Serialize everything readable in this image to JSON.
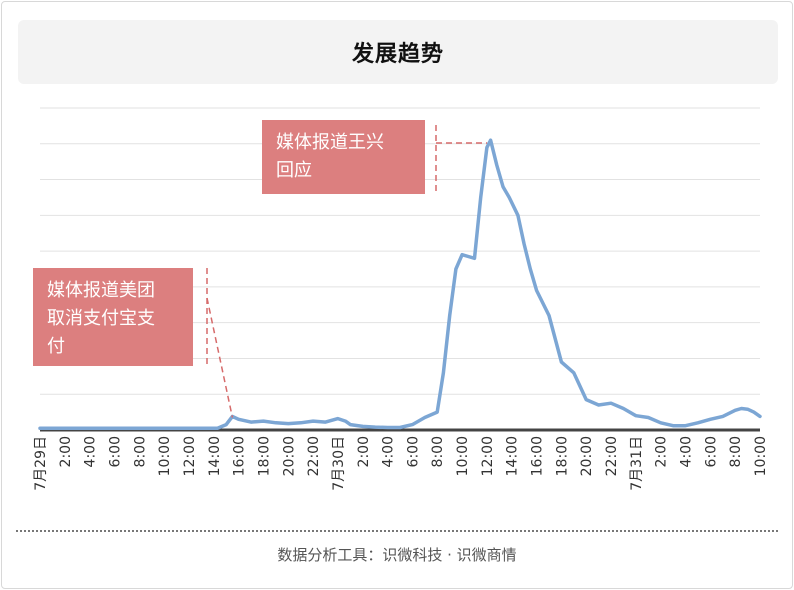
{
  "header": {
    "title": "发展趋势"
  },
  "footer": {
    "text": "数据分析工具：识微科技 · 识微商情"
  },
  "chart_data": {
    "type": "line",
    "title": "发展趋势",
    "xlabel": "",
    "ylabel": "",
    "grid": true,
    "ylim": [
      0,
      9
    ],
    "series": [
      {
        "color": "#7ca6d4",
        "x": [
          0,
          4,
          8,
          12,
          14.3,
          15,
          15.5,
          16,
          17,
          18,
          19,
          20,
          21,
          22,
          23,
          24,
          24.6,
          25,
          26,
          27,
          28,
          29,
          30,
          31,
          32,
          32.5,
          33,
          33.5,
          34,
          34.5,
          35,
          35.5,
          36,
          36.3,
          36.8,
          37.3,
          37.8,
          38.5,
          39,
          39.5,
          40,
          41,
          42,
          43,
          44,
          45,
          46,
          47,
          48,
          49,
          50,
          51,
          52,
          53,
          54,
          55,
          56,
          56.5,
          57,
          57.5,
          58
        ],
        "y": [
          0.05,
          0.05,
          0.05,
          0.05,
          0.05,
          0.15,
          0.38,
          0.3,
          0.22,
          0.25,
          0.2,
          0.18,
          0.2,
          0.25,
          0.22,
          0.32,
          0.25,
          0.15,
          0.1,
          0.08,
          0.07,
          0.07,
          0.15,
          0.35,
          0.5,
          1.6,
          3.2,
          4.5,
          4.9,
          4.85,
          4.8,
          6.5,
          7.9,
          8.1,
          7.4,
          6.8,
          6.5,
          6.0,
          5.2,
          4.5,
          3.9,
          3.2,
          1.9,
          1.6,
          0.85,
          0.7,
          0.75,
          0.6,
          0.4,
          0.35,
          0.2,
          0.12,
          0.12,
          0.2,
          0.3,
          0.38,
          0.55,
          0.6,
          0.58,
          0.5,
          0.38
        ]
      }
    ],
    "x_ticks": [
      "7月29日",
      "2:00",
      "4:00",
      "6:00",
      "8:00",
      "10:00",
      "12:00",
      "14:00",
      "16:00",
      "18:00",
      "20:00",
      "22:00",
      "7月30日",
      "2:00",
      "4:00",
      "6:00",
      "8:00",
      "10:00",
      "12:00",
      "14:00",
      "16:00",
      "18:00",
      "20:00",
      "22:00",
      "7月31日",
      "2:00",
      "4:00",
      "6:00",
      "8:00",
      "10:00"
    ],
    "annotations": [
      {
        "text": "媒体报道王兴\n回应",
        "x": 36.5,
        "y": 8.0
      },
      {
        "text": "媒体报道美团\n取消支付宝支\n付",
        "x": 15.5,
        "y": 0.35
      }
    ]
  }
}
